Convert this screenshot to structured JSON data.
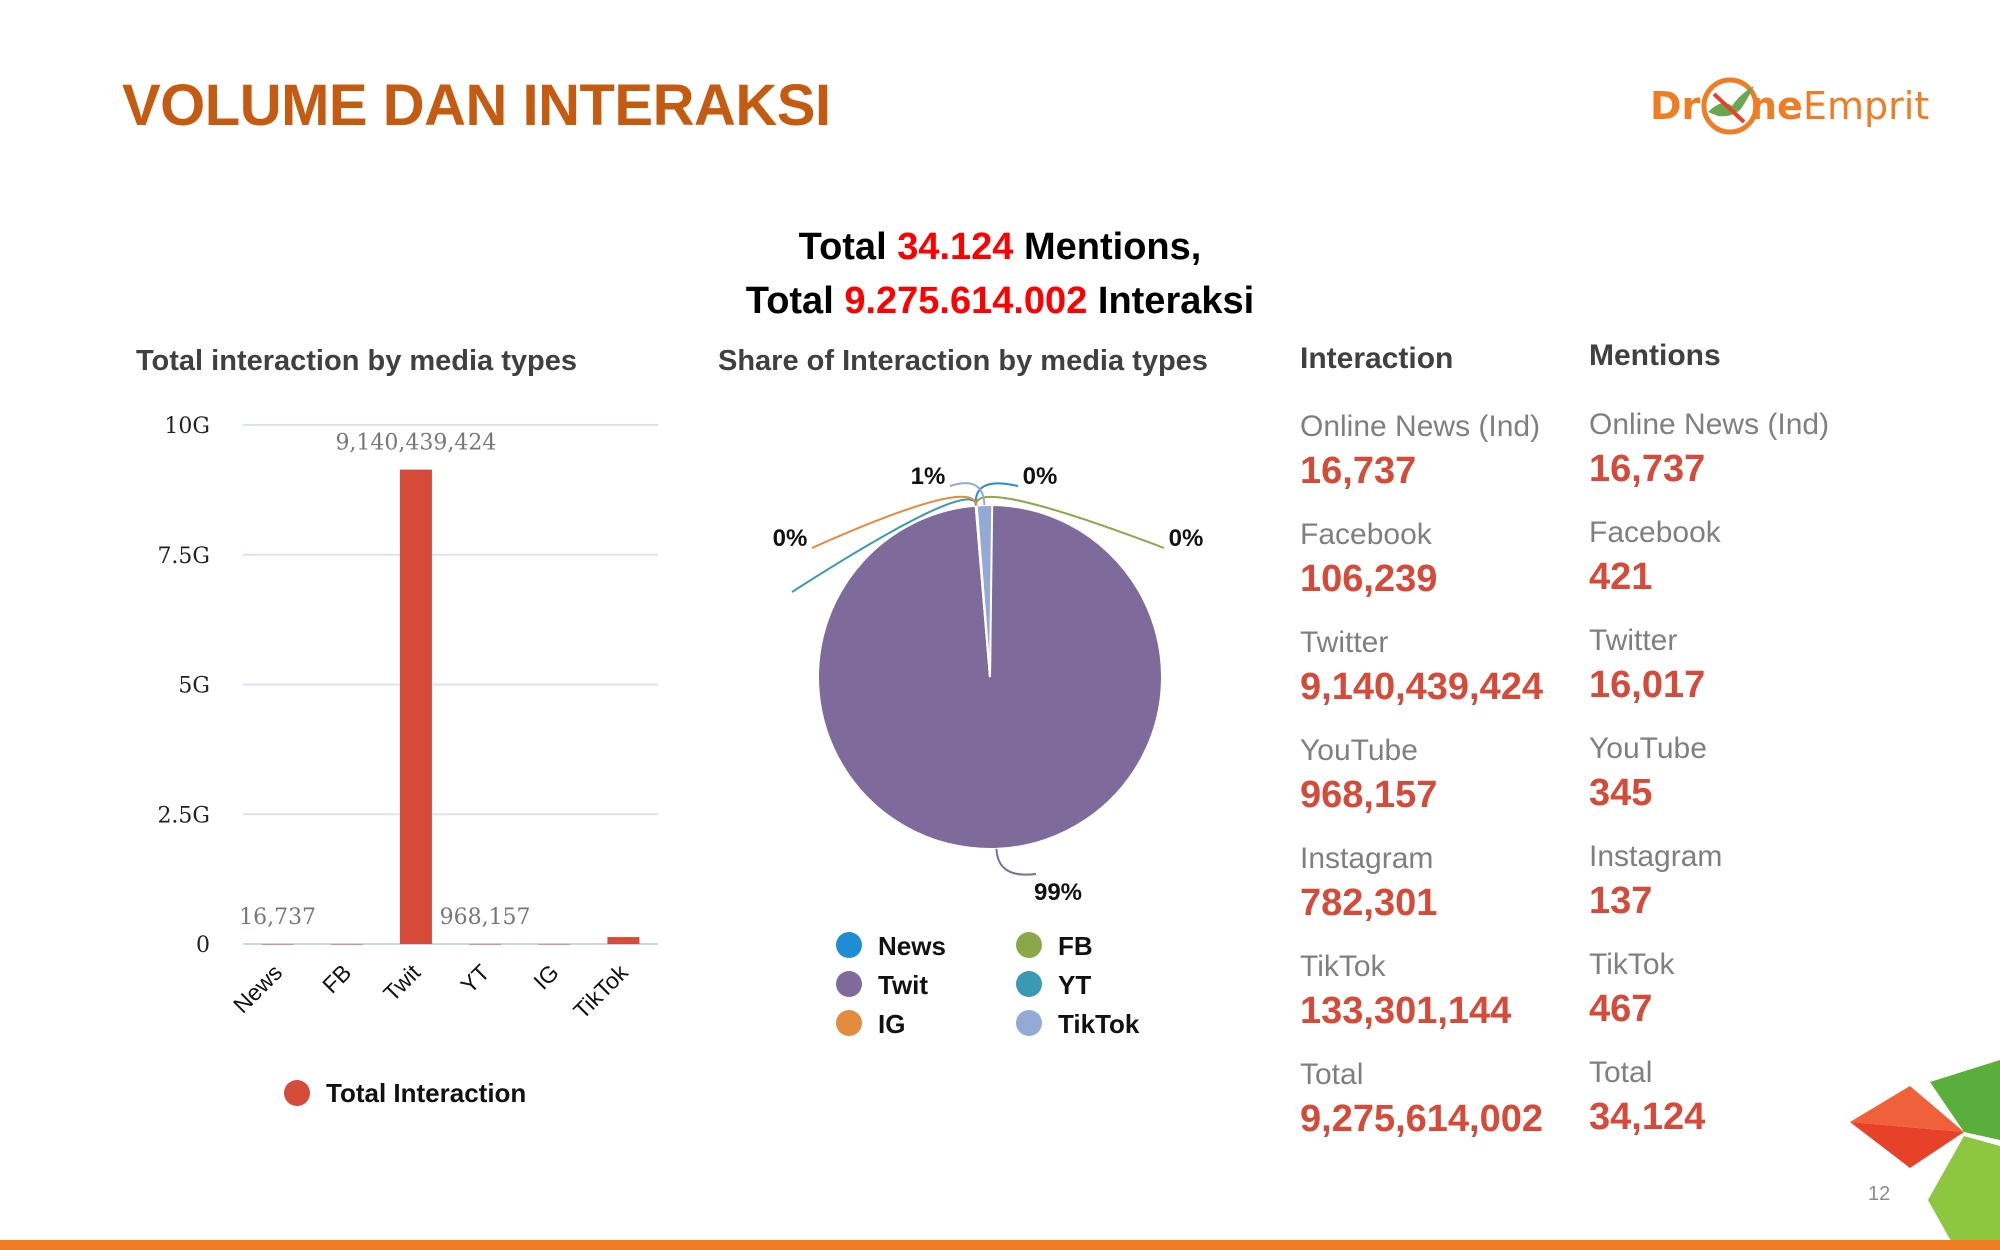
{
  "slide": {
    "title": "VOLUME DAN INTERAKSI",
    "page_number": "12",
    "logo": {
      "part1": "Dr",
      "part2": "ne",
      "part3": "Emprit"
    },
    "headline": {
      "line1": {
        "prefix": "Total ",
        "value": "34.124",
        "suffix": " Mentions,"
      },
      "line2": {
        "prefix": "Total ",
        "value": "9.275.614.002",
        "suffix": " Interaksi"
      }
    },
    "colors": {
      "title": "#c55a11",
      "highlight": "#ff0000",
      "stat_value": "#d64a3a",
      "accent": "#f07d24"
    }
  },
  "chart_data": [
    {
      "type": "bar",
      "title": "Total interaction by media types",
      "categories": [
        "News",
        "FB",
        "Twit",
        "YT",
        "IG",
        "TikTok"
      ],
      "series": [
        {
          "name": "Total Interaction",
          "color": "#d64a3a",
          "values": [
            16737,
            106239,
            9140439424,
            968157,
            782301,
            133301144
          ]
        }
      ],
      "data_labels": {
        "News": "16,737",
        "Twit": "9,140,439,424",
        "YT": "968,157"
      },
      "yticks": [
        "0",
        "2.5G",
        "5G",
        "7.5G",
        "10G"
      ],
      "ylim": [
        0,
        10000000000
      ],
      "grid": true,
      "legend": "bottom"
    },
    {
      "type": "pie",
      "title": "Share of Interaction by media types",
      "slices": [
        {
          "name": "News",
          "value": 16737,
          "label": "0%",
          "color": "#1f8dd6"
        },
        {
          "name": "FB",
          "value": 106239,
          "label": "0%",
          "color": "#8aa84a"
        },
        {
          "name": "Twit",
          "value": 9140439424,
          "label": "99%",
          "color": "#7f6a9c"
        },
        {
          "name": "YT",
          "value": 968157,
          "label": "0%",
          "color": "#3a9ab3"
        },
        {
          "name": "IG",
          "value": 782301,
          "label": "0%",
          "color": "#e38b3f"
        },
        {
          "name": "TikTok",
          "value": 133301144,
          "label": "1%",
          "color": "#94a9d4"
        }
      ],
      "legend": "bottom"
    },
    {
      "type": "table",
      "columns": [
        {
          "title": "Interaction",
          "rows": [
            {
              "label": "Online News (Ind)",
              "value": "16,737"
            },
            {
              "label": "Facebook",
              "value": "106,239"
            },
            {
              "label": "Twitter",
              "value": "9,140,439,424"
            },
            {
              "label": "YouTube",
              "value": "968,157"
            },
            {
              "label": "Instagram",
              "value": "782,301"
            },
            {
              "label": "TikTok",
              "value": "133,301,144"
            },
            {
              "label": "Total",
              "value": "9,275,614,002"
            }
          ]
        },
        {
          "title": "Mentions",
          "rows": [
            {
              "label": "Online News (Ind)",
              "value": "16,737"
            },
            {
              "label": "Facebook",
              "value": "421"
            },
            {
              "label": "Twitter",
              "value": "16,017"
            },
            {
              "label": "YouTube",
              "value": "345"
            },
            {
              "label": "Instagram",
              "value": "137"
            },
            {
              "label": "TikTok",
              "value": "467"
            },
            {
              "label": "Total",
              "value": "34,124"
            }
          ]
        }
      ]
    }
  ]
}
